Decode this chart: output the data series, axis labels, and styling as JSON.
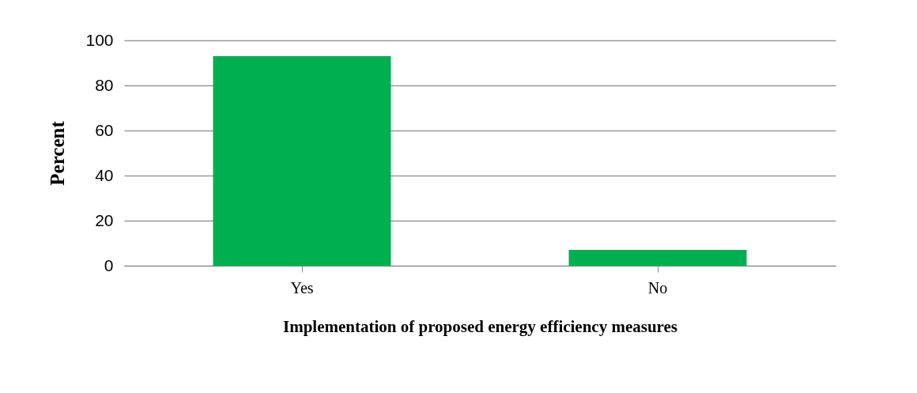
{
  "chart_data": {
    "type": "bar",
    "xlabel": "Implementation of proposed energy efficiency measures",
    "ylabel": "Percent",
    "categories": [
      "Yes",
      "No"
    ],
    "series": [
      {
        "color": "#00b050",
        "values": [
          93,
          7
        ]
      }
    ],
    "ylim": [
      0,
      100
    ],
    "yticks": [
      0,
      20,
      40,
      60,
      80,
      100
    ],
    "grid": "y"
  }
}
